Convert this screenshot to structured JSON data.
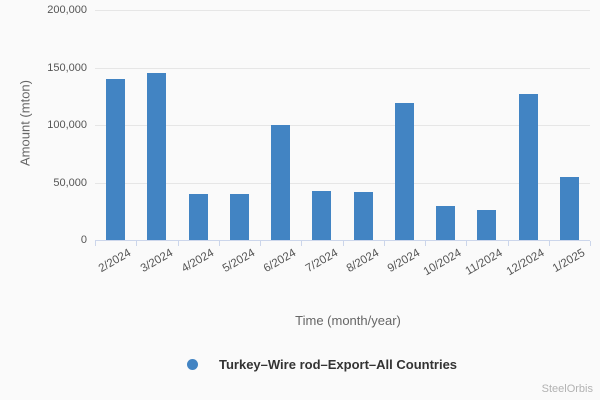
{
  "chart_data": {
    "type": "bar",
    "title": "",
    "categories": [
      "2/2024",
      "3/2024",
      "4/2024",
      "5/2024",
      "6/2024",
      "7/2024",
      "8/2024",
      "9/2024",
      "10/2024",
      "11/2024",
      "12/2024",
      "1/2025"
    ],
    "series": [
      {
        "name": "Turkey–Wire rod–Export–All Countries",
        "color": "#4284c3",
        "values": [
          140000,
          145000,
          40000,
          40000,
          100000,
          43000,
          42000,
          119000,
          30000,
          26000,
          127000,
          55000
        ]
      }
    ],
    "xlabel": "Time (month/year)",
    "ylabel": "Amount (mton)",
    "ylim": [
      0,
      200000
    ],
    "yticks": [
      0,
      50000,
      100000,
      150000,
      200000
    ],
    "ytick_labels": [
      "0",
      "50,000",
      "100,000",
      "150,000",
      "200,000"
    ],
    "grid": true,
    "legend_position": "bottom-center",
    "xtick_rotation_deg": -30
  },
  "legend": {
    "items": [
      {
        "label": "Turkey–Wire rod–Export–All Countries",
        "color": "#4284c3"
      }
    ]
  },
  "watermark": "SteelOrbis",
  "colors": {
    "background": "#fafafa",
    "bar": "#4284c3",
    "gridline": "#e6e6e6",
    "axis_line": "#ccd6eb",
    "tick_text": "#555555",
    "axis_title": "#666666",
    "legend_text": "#333333",
    "watermark": "#b2b2b2"
  }
}
